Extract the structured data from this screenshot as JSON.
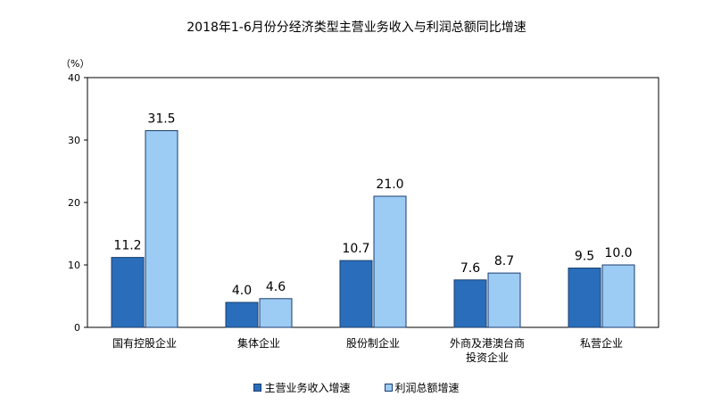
{
  "chart_data": {
    "type": "bar",
    "title": "2018年1-6月份分经济类型主营业务收入与利润总额同比增速",
    "ylabel": "（%）",
    "ylim": [
      0,
      40
    ],
    "yticks": [
      "0",
      "10",
      "20",
      "30",
      "40"
    ],
    "grid": false,
    "legend_position": "bottom",
    "categories": [
      [
        "国有控股企业"
      ],
      [
        "集体企业"
      ],
      [
        "股份制企业"
      ],
      [
        "外商及港澳台商",
        "投资企业"
      ],
      [
        "私营企业"
      ]
    ],
    "series": [
      {
        "name": "主营业务收入增速",
        "color": "#2a6ebb",
        "values": [
          11.2,
          4.0,
          10.7,
          7.6,
          9.5
        ],
        "labels": [
          "11.2",
          "4.0",
          "10.7",
          "7.6",
          "9.5"
        ]
      },
      {
        "name": "利润总额增速",
        "color": "#9ccbf4",
        "values": [
          31.5,
          4.6,
          21.0,
          8.7,
          10.0
        ],
        "labels": [
          "31.5",
          "4.6",
          "21.0",
          "8.7",
          "10.0"
        ]
      }
    ]
  }
}
